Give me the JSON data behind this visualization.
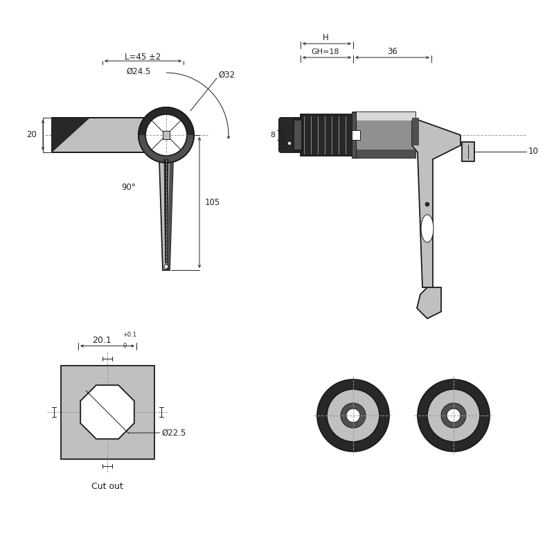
{
  "bg_color": "#ffffff",
  "lc": "#1a1a1a",
  "dc": "#222222",
  "gray_light": "#c0c0c0",
  "gray_mid": "#909090",
  "gray_dark": "#505050",
  "gray_very_dark": "#282828",
  "annotations": {
    "L_label": "L=45 ±2",
    "phi32": "Ø32",
    "phi24_5": "Ø24.5",
    "dim_20": "20",
    "dim_90": "90°",
    "dim_105": "105",
    "dim_8": "8",
    "H": "H",
    "GH18": "GH=18",
    "dim_36": "36",
    "dim_10": "10",
    "dim_20_1": "20.1",
    "tol_top": "+0.1",
    "tol_bot": "0",
    "phi22_5": "Ø22.5",
    "cutout": "Cut out"
  }
}
